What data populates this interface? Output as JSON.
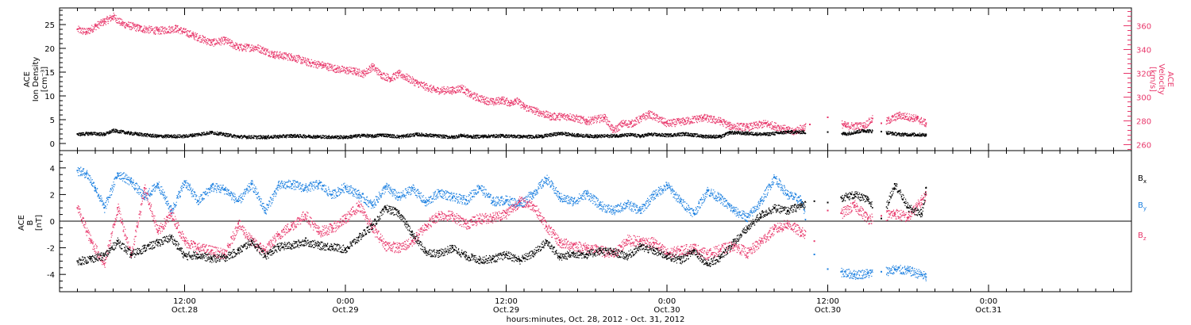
{
  "chart_data": [
    {
      "type": "scatter",
      "panel": "top",
      "ylabel_left": [
        "ACE",
        "Ion Density",
        "[cm⁻³]"
      ],
      "ylabel_right": [
        "ACE",
        "Velocity",
        "[km/s]"
      ],
      "ylim_left": [
        -1.5,
        28.5
      ],
      "yticks_left": [
        0,
        5,
        10,
        15,
        20,
        25
      ],
      "ylim_right": [
        255,
        375
      ],
      "yticks_right": [
        260,
        280,
        300,
        320,
        340,
        360
      ],
      "series": [
        {
          "name": "Ion Density",
          "axis": "left",
          "x": [
            0,
            3,
            6,
            8,
            12,
            18,
            24,
            30,
            36,
            42,
            48,
            54,
            60,
            64,
            66,
            68,
            72,
            76,
            80,
            84,
            86,
            88,
            91,
            95,
            100,
            104,
            108,
            112,
            116,
            120,
            124,
            126,
            128,
            132,
            136,
            140,
            144,
            146,
            150,
            154,
            159,
            168,
            172,
            176,
            180,
            184,
            190
          ],
          "y": [
            2.0,
            2.2,
            2.0,
            2.8,
            2.2,
            1.6,
            1.6,
            2.4,
            1.5,
            1.4,
            1.7,
            1.5,
            1.4,
            1.8,
            1.6,
            1.9,
            1.5,
            2.0,
            1.7,
            1.4,
            1.8,
            1.5,
            1.6,
            1.7,
            1.5,
            1.6,
            2.2,
            1.8,
            1.6,
            1.7,
            1.9,
            1.6,
            2.0,
            1.8,
            2.1,
            1.6,
            1.5,
            2.4,
            2.2,
            2.0,
            2.5,
            2.4,
            2.1,
            2.8,
            2.5,
            2.0,
            1.9
          ]
        },
        {
          "name": "Velocity",
          "axis": "right",
          "x": [
            0,
            2,
            4,
            6,
            8,
            10,
            14,
            18,
            22,
            26,
            30,
            33,
            36,
            40,
            44,
            48,
            52,
            55,
            58,
            62,
            64,
            66,
            68,
            70,
            72,
            76,
            80,
            84,
            86,
            88,
            91,
            93,
            95,
            97,
            98,
            100,
            103,
            106,
            110,
            114,
            118,
            120,
            122,
            124,
            126,
            128,
            132,
            136,
            140,
            144,
            146,
            150,
            154,
            158,
            160,
            164,
            168,
            172,
            176,
            178,
            180,
            184,
            188,
            190
          ],
          "y": [
            357,
            355,
            360,
            364,
            368,
            362,
            358,
            356,
            358,
            352,
            346,
            348,
            342,
            342,
            336,
            334,
            329,
            327,
            324,
            322,
            320,
            326,
            319,
            316,
            320,
            312,
            306,
            306,
            308,
            302,
            298,
            296,
            298,
            295,
            298,
            292,
            288,
            284,
            284,
            280,
            283,
            272,
            278,
            278,
            282,
            286,
            278,
            280,
            283,
            280,
            276,
            275,
            278,
            274,
            271,
            277,
            283,
            276,
            276,
            282,
            278,
            285,
            282,
            278
          ]
        }
      ]
    },
    {
      "type": "scatter",
      "panel": "bottom",
      "ylabel": [
        "ACE",
        "B",
        "[nT]"
      ],
      "ylim": [
        -5.3,
        5.3
      ],
      "yticks": [
        -4,
        -2,
        0,
        2,
        4
      ],
      "legend": [
        {
          "base": "B",
          "sub": "x",
          "color": "#000000"
        },
        {
          "base": "B",
          "sub": "y",
          "color": "#1a7fe0"
        },
        {
          "base": "B",
          "sub": "z",
          "color": "#e8366a"
        }
      ],
      "legend_placement": "right",
      "series": [
        {
          "name": "Bx",
          "x": [
            0,
            3,
            6,
            9,
            12,
            15,
            18,
            21,
            24,
            27,
            30,
            33,
            36,
            39,
            42,
            45,
            48,
            51,
            54,
            57,
            60,
            63,
            66,
            69,
            72,
            75,
            78,
            81,
            84,
            87,
            90,
            93,
            96,
            99,
            102,
            105,
            108,
            111,
            114,
            117,
            120,
            123,
            126,
            129,
            132,
            135,
            138,
            141,
            144,
            147,
            150,
            153,
            156,
            159,
            162,
            165,
            168,
            171,
            174,
            177,
            180,
            183,
            186,
            189,
            190
          ],
          "y": [
            -3.0,
            -2.8,
            -2.6,
            -1.5,
            -2.5,
            -2.0,
            -1.6,
            -1.2,
            -2.6,
            -2.5,
            -2.8,
            -2.7,
            -2.2,
            -1.5,
            -2.6,
            -1.9,
            -1.8,
            -1.5,
            -1.8,
            -1.9,
            -2.1,
            -1.2,
            -0.3,
            1.0,
            0.6,
            -1.0,
            -2.3,
            -2.4,
            -2.0,
            -2.6,
            -2.9,
            -2.8,
            -2.5,
            -2.9,
            -2.4,
            -1.5,
            -2.7,
            -2.4,
            -2.5,
            -2.2,
            -2.3,
            -2.6,
            -1.9,
            -2.2,
            -2.6,
            -2.9,
            -2.2,
            -3.2,
            -2.7,
            -1.5,
            -0.5,
            0.5,
            1.0,
            0.8,
            1.2,
            1.5,
            1.4,
            1.8,
            2.0,
            1.6,
            0.2,
            2.8,
            1.0,
            0.6,
            2.5
          ]
        },
        {
          "name": "By",
          "x": [
            0,
            2,
            4,
            6,
            9,
            12,
            15,
            18,
            21,
            24,
            27,
            30,
            33,
            36,
            39,
            42,
            45,
            48,
            51,
            54,
            57,
            60,
            63,
            66,
            69,
            72,
            75,
            78,
            81,
            84,
            87,
            90,
            93,
            96,
            99,
            102,
            105,
            108,
            111,
            114,
            117,
            120,
            123,
            126,
            129,
            132,
            135,
            138,
            141,
            144,
            147,
            150,
            153,
            156,
            159,
            162,
            165,
            168,
            171,
            174,
            177,
            180,
            183,
            186,
            189,
            190
          ],
          "y": [
            3.8,
            3.6,
            2.5,
            1.0,
            3.6,
            3.0,
            1.8,
            2.8,
            0.8,
            3.0,
            1.5,
            2.6,
            2.4,
            1.5,
            2.8,
            0.8,
            2.7,
            2.8,
            2.5,
            2.8,
            2.0,
            2.6,
            2.0,
            1.2,
            2.6,
            1.8,
            2.5,
            1.4,
            2.2,
            1.8,
            1.6,
            2.6,
            1.5,
            1.6,
            1.3,
            2.1,
            3.2,
            1.8,
            1.5,
            2.1,
            1.2,
            0.8,
            1.3,
            0.8,
            2.0,
            2.7,
            1.5,
            0.6,
            2.3,
            1.7,
            0.8,
            0.3,
            1.5,
            3.3,
            2.0,
            1.6,
            -2.5,
            -3.6,
            -3.8,
            -4.0,
            -3.9,
            -3.8,
            -3.6,
            -3.7,
            -4.0,
            -4.2
          ]
        },
        {
          "name": "Bz",
          "x": [
            0,
            3,
            6,
            9,
            12,
            15,
            18,
            21,
            24,
            27,
            30,
            33,
            36,
            39,
            42,
            45,
            48,
            51,
            54,
            57,
            60,
            63,
            66,
            69,
            72,
            75,
            78,
            81,
            84,
            87,
            90,
            93,
            96,
            99,
            102,
            105,
            108,
            111,
            114,
            117,
            120,
            123,
            126,
            129,
            132,
            135,
            138,
            141,
            144,
            147,
            150,
            153,
            156,
            159,
            162,
            165,
            168,
            171,
            174,
            177,
            180,
            183,
            186,
            189,
            190
          ],
          "y": [
            1.0,
            -1.5,
            -3.2,
            1.0,
            -2.5,
            2.5,
            -0.8,
            0.6,
            -1.5,
            -2.0,
            -2.2,
            -2.5,
            -0.2,
            -1.5,
            -2.2,
            -1.0,
            -0.3,
            0.5,
            -0.8,
            -0.5,
            0.2,
            1.2,
            -0.5,
            -1.8,
            -2.0,
            -1.5,
            -0.3,
            0.5,
            0.4,
            -0.2,
            0.2,
            0.3,
            0.6,
            1.5,
            1.2,
            -0.4,
            -1.6,
            -1.8,
            -2.0,
            -2.2,
            -2.5,
            -1.4,
            -1.5,
            -1.6,
            -2.4,
            -2.2,
            -2.0,
            -2.5,
            -2.1,
            -1.8,
            -2.4,
            -1.5,
            -0.6,
            -0.2,
            -0.8,
            -1.5,
            0.8,
            0.6,
            1.2,
            0.2,
            0.4,
            0.6,
            0.3,
            1.6,
            2.0
          ]
        }
      ]
    }
  ],
  "x_axis": {
    "xlim_hours": [
      -4,
      236
    ],
    "major_ticks": [
      {
        "hours": 24,
        "time": "12:00",
        "date": "Oct.28"
      },
      {
        "hours": 60,
        "time": "0:00",
        "date": "Oct.29"
      },
      {
        "hours": 96,
        "time": "12:00",
        "date": "Oct.29"
      },
      {
        "hours": 132,
        "time": "0:00",
        "date": "Oct.30"
      },
      {
        "hours": 168,
        "time": "12:00",
        "date": "Oct.30"
      },
      {
        "hours": 204,
        "time": "0:00",
        "date": "Oct.31"
      }
    ],
    "label": "hours:minutes, Oct. 28, 2012 - Oct. 31, 2012"
  },
  "colors": {
    "black": "#000000",
    "blue": "#1a7fe0",
    "pink": "#e8366a"
  }
}
